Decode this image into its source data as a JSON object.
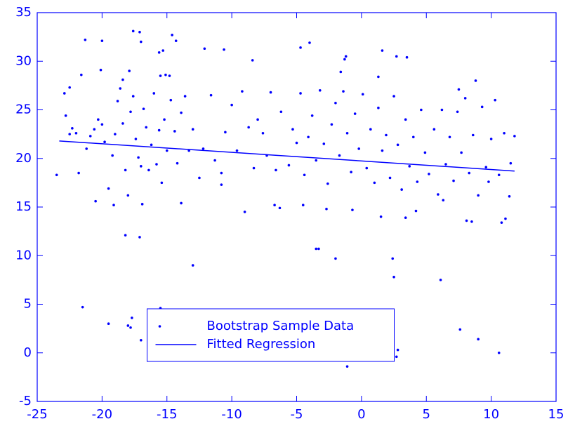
{
  "chart_data": {
    "type": "scatter",
    "xlim": [
      -25,
      15
    ],
    "ylim": [
      -5,
      35
    ],
    "xticks": [
      -25,
      -20,
      -15,
      -10,
      -5,
      0,
      5,
      10,
      15
    ],
    "yticks": [
      -5,
      0,
      5,
      10,
      15,
      20,
      25,
      30,
      35
    ],
    "legend": "lower center",
    "series": [
      {
        "name": "Bootstrap Sample Data",
        "type": "scatter",
        "color": "#0000ff",
        "x": [
          -21.5,
          -19.5,
          -18,
          -17.7,
          -17.8,
          -17,
          -15.5,
          -13,
          -18.2,
          -17.1,
          -9,
          -2,
          -1.1,
          2.4,
          2.5,
          2.7,
          2.8,
          6.1,
          7.6,
          9,
          10.6,
          -3.5,
          -3.3,
          -23.5,
          -21.3,
          -20,
          -17.6,
          -17.1,
          -14.6,
          -14.3,
          -12.1,
          -10.6,
          -8.4,
          -4.7,
          -4,
          -1.3,
          -1.2,
          1.6,
          2.7,
          3.5,
          -22.5,
          -21.6,
          -20.1,
          -17.9,
          -18.4,
          -15.5,
          -15.1,
          -14.8,
          -15.3,
          -15.6,
          -17,
          1.3,
          -1.6,
          8.1,
          8.5,
          10.8,
          11.1,
          6.3,
          4.2,
          3.4,
          1.5,
          -0.7,
          -2.7,
          -4.5,
          -6.3,
          -6.7,
          -10.8,
          -13.9,
          -16.9,
          -19.1,
          -20.5,
          -22.9,
          -22.8,
          -22.5,
          -22.3,
          -22.0,
          -21.8,
          -21.2,
          -20.9,
          -20.6,
          -20.3,
          -20.0,
          -19.8,
          -19.5,
          -19.2,
          -19.0,
          -18.8,
          -18.6,
          -18.4,
          -18.2,
          -18.0,
          -17.8,
          -17.6,
          -17.4,
          -17.2,
          -17.0,
          -16.8,
          -16.6,
          -16.4,
          -16.2,
          -16.0,
          -15.8,
          -15.6,
          -15.4,
          -15.2,
          -15.0,
          -14.7,
          -14.4,
          -14.2,
          -13.9,
          -13.6,
          -13.3,
          -13.0,
          -12.5,
          -12.2,
          -11.6,
          -11.3,
          -10.8,
          -10.5,
          -10.0,
          -9.6,
          -9.2,
          -8.7,
          -8.3,
          -8.0,
          -7.6,
          -7.3,
          -7.0,
          -6.6,
          -6.2,
          -5.6,
          -5.3,
          -5.0,
          -4.7,
          -4.4,
          -4.1,
          -3.8,
          -3.5,
          -3.2,
          -2.9,
          -2.6,
          -2.3,
          -2.0,
          -1.7,
          -1.4,
          -1.1,
          -0.8,
          -0.5,
          -0.2,
          0.1,
          0.4,
          0.7,
          1.0,
          1.3,
          1.6,
          1.9,
          2.2,
          2.5,
          2.8,
          3.1,
          3.4,
          3.7,
          4.0,
          4.3,
          4.6,
          4.9,
          5.2,
          5.6,
          5.9,
          6.2,
          6.5,
          6.8,
          7.1,
          7.4,
          7.7,
          8.0,
          8.3,
          8.6,
          9.0,
          9.3,
          9.6,
          10.0,
          10.3,
          10.6,
          11.0,
          11.5,
          11.8,
          11.4,
          9.8,
          8.8,
          7.5
        ],
        "values": [
          4.7,
          3.0,
          2.8,
          3.6,
          2.6,
          1.3,
          4.6,
          9.0,
          12.1,
          11.9,
          14.5,
          9.7,
          -1.4,
          9.7,
          7.8,
          -0.4,
          0.3,
          7.5,
          2.4,
          1.4,
          0.0,
          10.7,
          10.7,
          18.3,
          32.2,
          32.1,
          33.1,
          33.0,
          32.7,
          32.1,
          31.3,
          31.2,
          30.1,
          31.4,
          31.9,
          30.2,
          30.5,
          31.1,
          30.5,
          30.4,
          27.3,
          28.6,
          29.1,
          29.0,
          28.1,
          28.5,
          28.6,
          28.5,
          31.1,
          30.9,
          32.0,
          28.4,
          28.9,
          13.6,
          13.5,
          13.4,
          13.8,
          15.7,
          14.6,
          13.9,
          14.0,
          14.7,
          14.8,
          15.2,
          14.9,
          15.2,
          17.3,
          15.4,
          15.3,
          15.2,
          15.6,
          26.7,
          24.4,
          22.5,
          23.1,
          22.6,
          18.5,
          21.0,
          22.3,
          23.0,
          24.0,
          23.5,
          21.7,
          16.9,
          20.3,
          22.5,
          25.9,
          27.2,
          23.6,
          18.8,
          16.2,
          24.8,
          26.4,
          22.0,
          20.1,
          19.2,
          25.1,
          23.2,
          18.8,
          21.4,
          26.7,
          19.4,
          22.9,
          17.5,
          24.0,
          20.8,
          26.0,
          22.8,
          19.5,
          24.7,
          26.4,
          20.8,
          23.0,
          18.0,
          21.0,
          26.5,
          19.8,
          18.5,
          22.7,
          25.5,
          20.8,
          26.9,
          23.2,
          19.0,
          24.0,
          22.6,
          20.3,
          26.8,
          18.8,
          24.8,
          19.3,
          23.0,
          21.6,
          26.7,
          18.3,
          22.2,
          24.4,
          19.8,
          27.0,
          21.5,
          17.4,
          23.5,
          25.7,
          20.3,
          26.9,
          22.6,
          18.6,
          24.6,
          21.0,
          26.6,
          19.0,
          23.0,
          17.5,
          25.2,
          20.8,
          22.4,
          18.0,
          26.4,
          21.4,
          16.8,
          24.0,
          19.2,
          22.2,
          17.6,
          25.0,
          20.6,
          18.4,
          23.0,
          16.3,
          25.0,
          19.4,
          22.2,
          17.7,
          24.8,
          20.6,
          26.2,
          18.5,
          22.4,
          16.2,
          25.3,
          19.1,
          22.0,
          26.0,
          18.3,
          22.6,
          19.5,
          22.3,
          16.1,
          17.6,
          28.0,
          27.1
        ]
      },
      {
        "name": "Fitted Regression",
        "type": "line",
        "color": "#0000ff",
        "x": [
          -23.3,
          11.8
        ],
        "values": [
          21.8,
          18.7
        ]
      }
    ]
  }
}
